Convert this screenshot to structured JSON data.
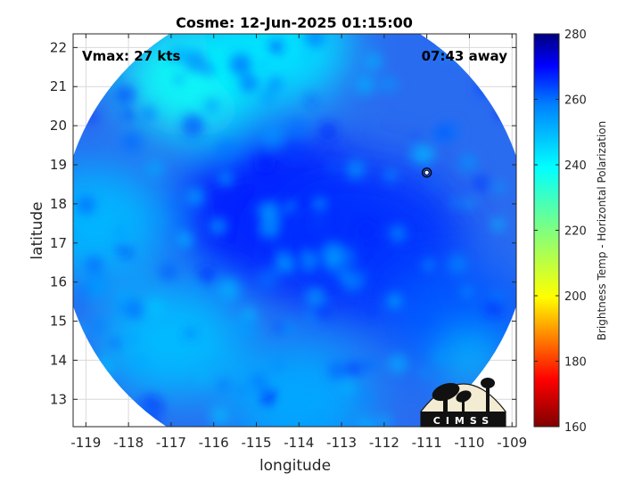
{
  "chart_data": {
    "type": "heatmap",
    "title": "Cosme: 12-Jun-2025 01:15:00",
    "xlabel": "longitude",
    "ylabel": "latitude",
    "xlim": [
      -119.3,
      -108.9
    ],
    "ylim": [
      12.3,
      22.35
    ],
    "xticks": [
      -119,
      -118,
      -117,
      -116,
      -115,
      -114,
      -113,
      -112,
      -111,
      -110,
      -109
    ],
    "yticks": [
      13,
      14,
      15,
      16,
      17,
      18,
      19,
      20,
      21,
      22
    ],
    "grid": true,
    "annotations": {
      "vmax": "Vmax: 27 kts",
      "time_away": "07:43 away"
    },
    "storm_center": {
      "lon": -111.0,
      "lat": 18.8
    },
    "swath": {
      "center_lon": -114.1,
      "center_lat": 17.3,
      "radius_deg": 5.6
    },
    "colorbar": {
      "label": "Brightness Temp - Horizontal Polarization",
      "min": 160,
      "max": 280,
      "ticks": [
        160,
        180,
        200,
        220,
        240,
        260,
        280
      ]
    },
    "regions": [
      {
        "name": "northwest-rim",
        "lon": -116.5,
        "lat": 21.2,
        "value": 238
      },
      {
        "name": "north-edge",
        "lon": -114.5,
        "lat": 22.0,
        "value": 243
      },
      {
        "name": "west-edge",
        "lon": -118.8,
        "lat": 17.5,
        "value": 250
      },
      {
        "name": "central-core",
        "lon": -114.5,
        "lat": 17.8,
        "value": 268
      },
      {
        "name": "east-core",
        "lon": -112.5,
        "lat": 17.0,
        "value": 266
      },
      {
        "name": "southwest",
        "lon": -117.0,
        "lat": 14.5,
        "value": 249
      },
      {
        "name": "south",
        "lon": -114.0,
        "lat": 13.0,
        "value": 252
      },
      {
        "name": "east-band",
        "lon": -110.3,
        "lat": 15.0,
        "value": 262
      },
      {
        "name": "east-spot",
        "lon": -110.0,
        "lat": 14.0,
        "value": 238
      }
    ]
  },
  "logo": {
    "text": "CIMSS"
  }
}
